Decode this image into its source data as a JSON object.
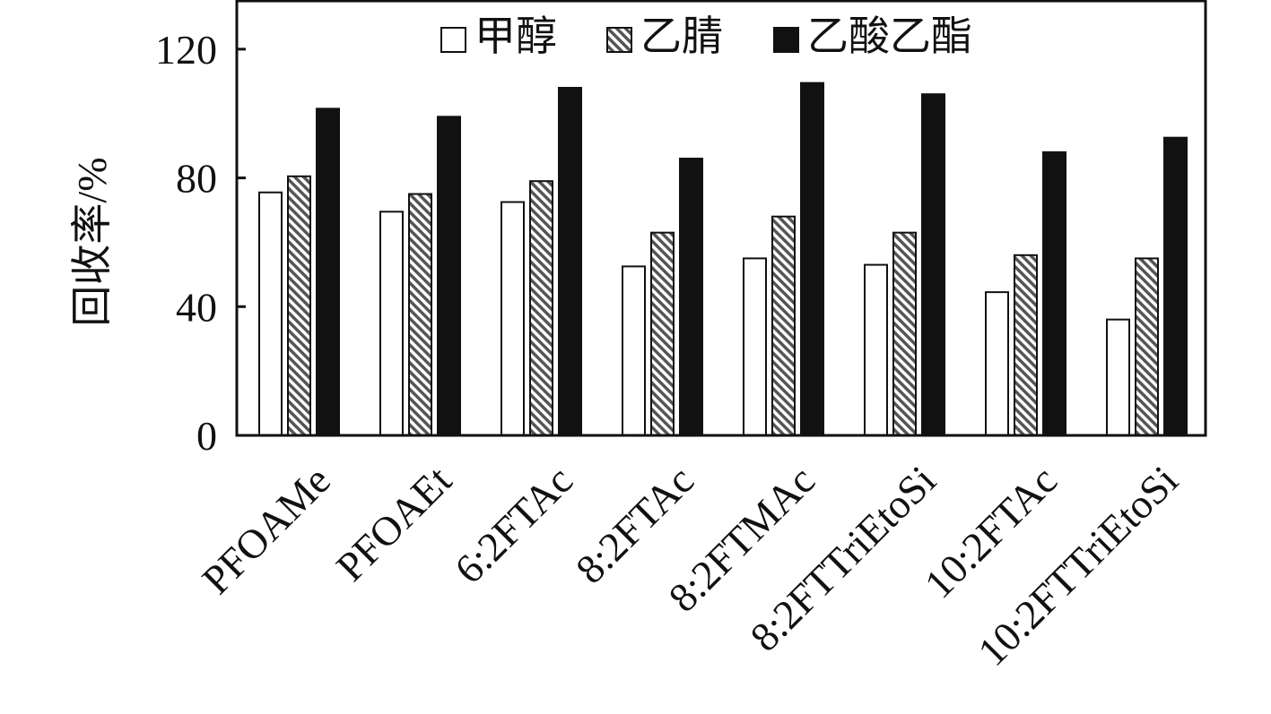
{
  "chart_data": {
    "type": "bar",
    "title": "",
    "xlabel": "",
    "ylabel": "回收率/%",
    "ylim": [
      0,
      135
    ],
    "yticks": [
      0,
      40,
      80,
      120
    ],
    "grid": false,
    "legend_position": "top",
    "categories": [
      "PFOAMe",
      "PFOAEt",
      "6:2FTAc",
      "8:2FTAc",
      "8:2FTMAc",
      "8:2FTTriEtoSi",
      "10:2FTAc",
      "10:2FTTriEtoSi"
    ],
    "series": [
      {
        "name": "甲醇",
        "fill": "white",
        "values": [
          75.5,
          69.5,
          72.5,
          52.5,
          55,
          53,
          44.5,
          36
        ]
      },
      {
        "name": "乙腈",
        "fill": "hatched",
        "values": [
          80.5,
          75,
          79,
          63,
          68,
          63,
          56,
          55
        ]
      },
      {
        "name": "乙酸乙酯",
        "fill": "black",
        "values": [
          101.5,
          99,
          108,
          86,
          109.5,
          106,
          88,
          92.5
        ]
      }
    ],
    "colors": {
      "stroke": "#111111",
      "black_fill": "#111111",
      "white_fill": "#ffffff",
      "hatch_line": "#555555"
    }
  }
}
